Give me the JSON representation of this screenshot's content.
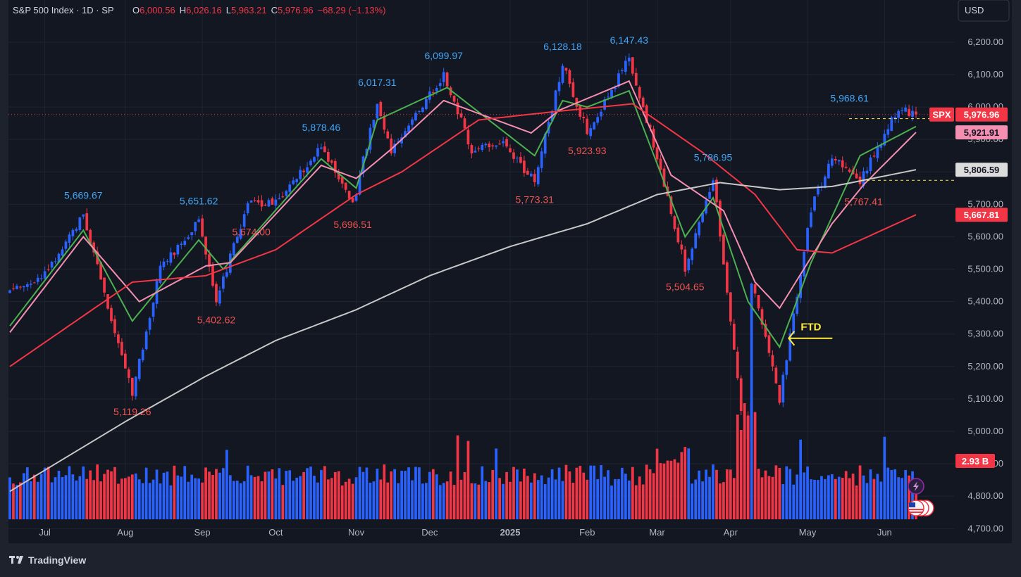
{
  "header": {
    "symbol": "S&P 500 Index · 1D · SP",
    "o_label": "O",
    "o_value": "6,000.56",
    "h_label": "H",
    "h_value": "6,026.16",
    "l_label": "L",
    "l_value": "5,963.21",
    "c_label": "C",
    "c_value": "5,976.96",
    "change": "−68.29 (−1.13%)"
  },
  "currency_button": "USD",
  "footer": {
    "brand": "TradingView"
  },
  "colors": {
    "background": "#131722",
    "frame": "#1e222d",
    "up": "#2962ff",
    "down": "#f23645",
    "ema_fast": "#4caf50",
    "ema_mid": "#f48fb1",
    "ma_50": "#f23645",
    "ma_200": "#c8c8c8",
    "ftd_arrow": "#ffeb3b",
    "label_up": "#42a5f5",
    "label_down": "#ef5350"
  },
  "chart_data": {
    "type": "candlestick",
    "title": "",
    "x_labels": [
      "Jul",
      "Aug",
      "Sep",
      "Oct",
      "Nov",
      "Dec",
      "2025",
      "Feb",
      "Mar",
      "Apr",
      "May",
      "Jun"
    ],
    "y_ticks": [
      "6,200.00",
      "6,100.00",
      "6,000.00",
      "5,900.00",
      "5,800.00",
      "5,700.00",
      "5,600.00",
      "5,500.00",
      "5,400.00",
      "5,300.00",
      "5,200.00",
      "5,100.00",
      "5,000.00",
      "4,900.00",
      "4,800.00",
      "4,700.00"
    ],
    "y_tick_values": [
      6200,
      6100,
      6000,
      5900,
      5800,
      5700,
      5600,
      5500,
      5400,
      5300,
      5200,
      5100,
      5000,
      4900,
      4800,
      4700
    ],
    "ylim": [
      4655,
      6330
    ],
    "price_anchors": {
      "dates": [
        "2024-06-17",
        "2024-07-01",
        "2024-07-16",
        "2024-07-24",
        "2024-08-05",
        "2024-08-15",
        "2024-08-30",
        "2024-09-06",
        "2024-09-19",
        "2024-10-01",
        "2024-10-18",
        "2024-10-31",
        "2024-11-11",
        "2024-11-15",
        "2024-12-06",
        "2024-12-18",
        "2024-12-31",
        "2025-01-13",
        "2025-01-23",
        "2025-02-03",
        "2025-02-19",
        "2025-03-03",
        "2025-03-13",
        "2025-03-25",
        "2025-04-04",
        "2025-04-08",
        "2025-04-09",
        "2025-04-21",
        "2025-05-02",
        "2025-05-12",
        "2025-05-22",
        "2025-06-06",
        "2025-06-13"
      ],
      "values": [
        5430,
        5480,
        5669.67,
        5430,
        5119.26,
        5500,
        5651.62,
        5402.62,
        5700,
        5708,
        5878.46,
        5696.51,
        6017.31,
        5870,
        6099.97,
        5870,
        5882,
        5773.31,
        6128.18,
        5923.93,
        6147.43,
        5850,
        5504.65,
        5786.95,
        5074,
        4982,
        5456,
        5101,
        5686,
        5844,
        5767.41,
        6000,
        5976.96
      ]
    },
    "moving_averages": [
      {
        "id": "ema_fast",
        "dates": [
          "2024-06-17",
          "2024-07-16",
          "2024-08-05",
          "2024-08-30",
          "2024-09-10",
          "2024-10-18",
          "2024-11-01",
          "2024-11-11",
          "2024-12-09",
          "2025-01-13",
          "2025-01-23",
          "2025-02-03",
          "2025-02-19",
          "2025-03-13",
          "2025-03-25",
          "2025-04-08",
          "2025-04-21",
          "2025-05-02",
          "2025-05-22",
          "2025-06-13"
        ],
        "values": [
          5325,
          5620,
          5340,
          5590,
          5500,
          5840,
          5750,
          5960,
          6060,
          5850,
          6020,
          6000,
          6050,
          5600,
          5720,
          5400,
          5260,
          5520,
          5850,
          5940
        ]
      },
      {
        "id": "ema_mid",
        "dates": [
          "2024-06-17",
          "2024-07-16",
          "2024-08-07",
          "2024-09-03",
          "2024-09-12",
          "2024-10-18",
          "2024-11-01",
          "2024-11-15",
          "2024-12-06",
          "2025-01-10",
          "2025-01-22",
          "2025-02-19",
          "2025-03-07",
          "2025-03-28",
          "2025-04-10",
          "2025-04-21",
          "2025-05-12",
          "2025-05-23",
          "2025-06-13"
        ],
        "values": [
          5305,
          5600,
          5400,
          5510,
          5520,
          5820,
          5780,
          5870,
          6020,
          5920,
          5990,
          6080,
          5790,
          5680,
          5460,
          5380,
          5640,
          5760,
          5921.91
        ]
      },
      {
        "id": "ma_50",
        "dates": [
          "2024-06-17",
          "2024-08-05",
          "2024-09-03",
          "2024-10-01",
          "2024-11-01",
          "2024-11-20",
          "2024-12-20",
          "2025-01-20",
          "2025-02-20",
          "2025-03-20",
          "2025-04-10",
          "2025-04-28",
          "2025-05-12",
          "2025-06-13"
        ],
        "values": [
          5200,
          5460,
          5480,
          5560,
          5730,
          5800,
          5960,
          5985,
          6010,
          5860,
          5730,
          5560,
          5550,
          5667.81
        ]
      },
      {
        "id": "ma_200",
        "dates": [
          "2024-06-17",
          "2024-08-01",
          "2024-09-03",
          "2024-10-01",
          "2024-11-01",
          "2024-12-02",
          "2025-01-02",
          "2025-02-03",
          "2025-03-03",
          "2025-03-27",
          "2025-04-20",
          "2025-05-12",
          "2025-06-13"
        ],
        "values": [
          4815,
          5030,
          5170,
          5280,
          5375,
          5480,
          5570,
          5640,
          5730,
          5767,
          5745,
          5755,
          5806.59
        ]
      }
    ],
    "swing_labels": [
      {
        "text": "5,669.67",
        "date": "2024-07-16",
        "value": 5669.67,
        "side": "high"
      },
      {
        "text": "5,119.26",
        "date": "2024-08-05",
        "value": 5119.26,
        "side": "low"
      },
      {
        "text": "5,651.62",
        "date": "2024-08-30",
        "value": 5651.62,
        "side": "high"
      },
      {
        "text": "5,402.62",
        "date": "2024-09-06",
        "value": 5402.62,
        "side": "low"
      },
      {
        "text": "5,674.00",
        "date": "2024-09-20",
        "value": 5674.0,
        "side": "low"
      },
      {
        "text": "5,878.46",
        "date": "2024-10-18",
        "value": 5878.46,
        "side": "high"
      },
      {
        "text": "5,696.51",
        "date": "2024-10-31",
        "value": 5696.51,
        "side": "low"
      },
      {
        "text": "6,017.31",
        "date": "2024-11-11",
        "value": 6017.31,
        "side": "high"
      },
      {
        "text": "6,099.97",
        "date": "2024-12-06",
        "value": 6099.97,
        "side": "high"
      },
      {
        "text": "5,773.31",
        "date": "2025-01-13",
        "value": 5773.31,
        "side": "low"
      },
      {
        "text": "6,128.18",
        "date": "2025-01-23",
        "value": 6128.18,
        "side": "high"
      },
      {
        "text": "5,923.93",
        "date": "2025-02-03",
        "value": 5923.93,
        "side": "low"
      },
      {
        "text": "6,147.43",
        "date": "2025-02-19",
        "value": 6147.43,
        "side": "high"
      },
      {
        "text": "5,504.65",
        "date": "2025-03-13",
        "value": 5504.65,
        "side": "low"
      },
      {
        "text": "5,786.95",
        "date": "2025-03-25",
        "value": 5786.95,
        "side": "high"
      },
      {
        "text": "5,968.61",
        "date": "2025-05-19",
        "value": 5968.61,
        "side": "high"
      },
      {
        "text": "5,767.41",
        "date": "2025-05-23",
        "value": 5767.41,
        "side": "low"
      }
    ],
    "price_tags": [
      {
        "text": "SPX",
        "kind": "ticker",
        "value": 5976.96
      },
      {
        "text": "5,976.96",
        "kind": "last",
        "value": 5976.96
      },
      {
        "text": "5,921.91",
        "kind": "ema_mid",
        "value": 5921.91
      },
      {
        "text": "5,806.59",
        "kind": "ma_200",
        "value": 5806.59
      },
      {
        "text": "5,667.81",
        "kind": "ma_50",
        "value": 5667.81
      },
      {
        "text": "2.93 B",
        "kind": "volume",
        "value": 2.93
      }
    ],
    "annotations": [
      {
        "text": "FTD",
        "date": "2025-04-22",
        "value": 5287
      }
    ],
    "volume": {
      "last": 2.93,
      "unit": "B"
    }
  }
}
